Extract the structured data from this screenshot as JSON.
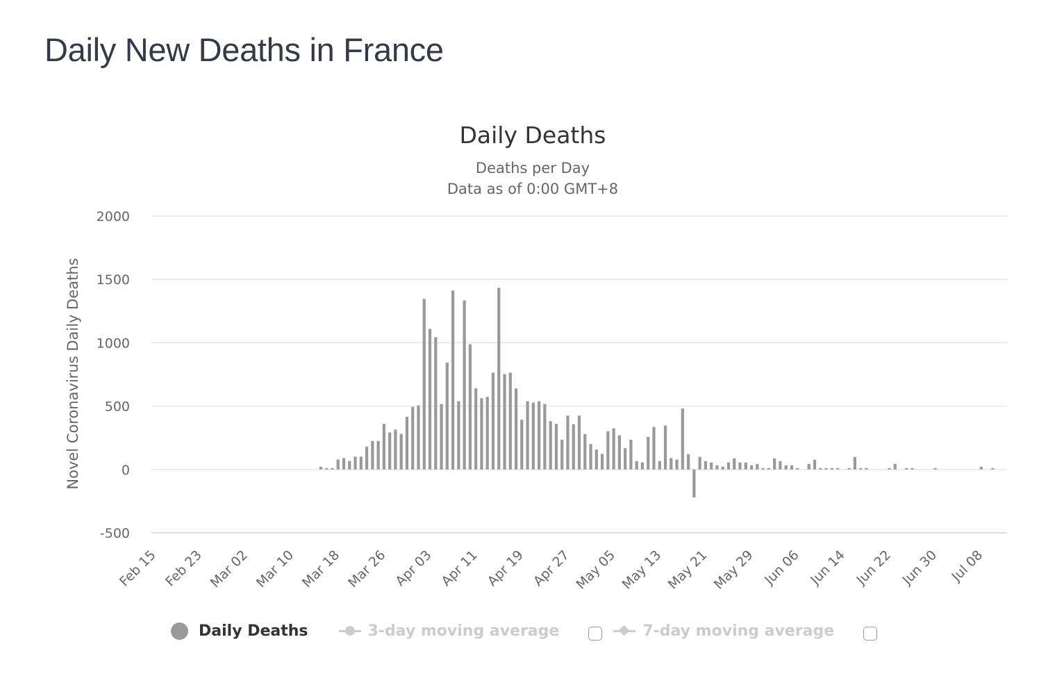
{
  "page": {
    "title": "Daily New Deaths in France"
  },
  "legend": {
    "items": [
      {
        "label": "Daily Deaths",
        "visible": true,
        "color": "#999999"
      },
      {
        "label": "3-day moving average",
        "visible": false,
        "color": "#cccccc",
        "checked": false
      },
      {
        "label": "7-day moving average",
        "visible": false,
        "color": "#cccccc",
        "checked": false
      }
    ]
  },
  "chart_data": {
    "type": "bar",
    "title": "Daily Deaths",
    "subtitle": [
      "Deaths per Day",
      "Data as of 0:00 GMT+8"
    ],
    "xlabel": "",
    "ylabel": "Novel Coronavirus Daily Deaths",
    "ylim": [
      -500,
      2000
    ],
    "yticks": [
      -500,
      0,
      500,
      1000,
      1500,
      2000
    ],
    "grid": true,
    "legend_position": "bottom",
    "bar_color": "#999999",
    "x_tick_labels": [
      "Feb 15",
      "Feb 23",
      "Mar 02",
      "Mar 10",
      "Mar 18",
      "Mar 26",
      "Apr 03",
      "Apr 11",
      "Apr 19",
      "Apr 27",
      "May 05",
      "May 13",
      "May 21",
      "May 29",
      "Jun 06",
      "Jun 14",
      "Jun 22",
      "Jun 30",
      "Jul 08"
    ],
    "x_start": "Feb 15",
    "x_end": "Jul 12",
    "series": [
      {
        "name": "Daily Deaths",
        "values": [
          0,
          0,
          0,
          0,
          0,
          0,
          0,
          0,
          0,
          0,
          0,
          0,
          0,
          0,
          0,
          0,
          0,
          0,
          0,
          0,
          0,
          0,
          0,
          0,
          0,
          0,
          0,
          0,
          0,
          22,
          11,
          11,
          79,
          90,
          67,
          101,
          101,
          180,
          225,
          225,
          360,
          292,
          315,
          281,
          416,
          494,
          506,
          1346,
          1110,
          1044,
          517,
          843,
          1412,
          539,
          1335,
          988,
          640,
          562,
          573,
          764,
          1434,
          753,
          764,
          640,
          393,
          539,
          528,
          539,
          517,
          382,
          360,
          235,
          425,
          358,
          425,
          280,
          201,
          157,
          123,
          302,
          325,
          269,
          168,
          235,
          67,
          56,
          257,
          336,
          67,
          347,
          90,
          78,
          481,
          121,
          -220,
          99,
          66,
          55,
          33,
          22,
          55,
          88,
          55,
          55,
          33,
          44,
          11,
          11,
          88,
          66,
          33,
          33,
          11,
          0,
          44,
          77,
          11,
          11,
          11,
          11,
          0,
          11,
          99,
          11,
          11,
          0,
          0,
          0,
          11,
          44,
          0,
          11,
          11,
          0,
          0,
          0,
          11,
          0,
          0,
          0,
          0,
          0,
          0,
          0,
          22,
          0,
          11,
          0,
          0
        ]
      }
    ]
  }
}
